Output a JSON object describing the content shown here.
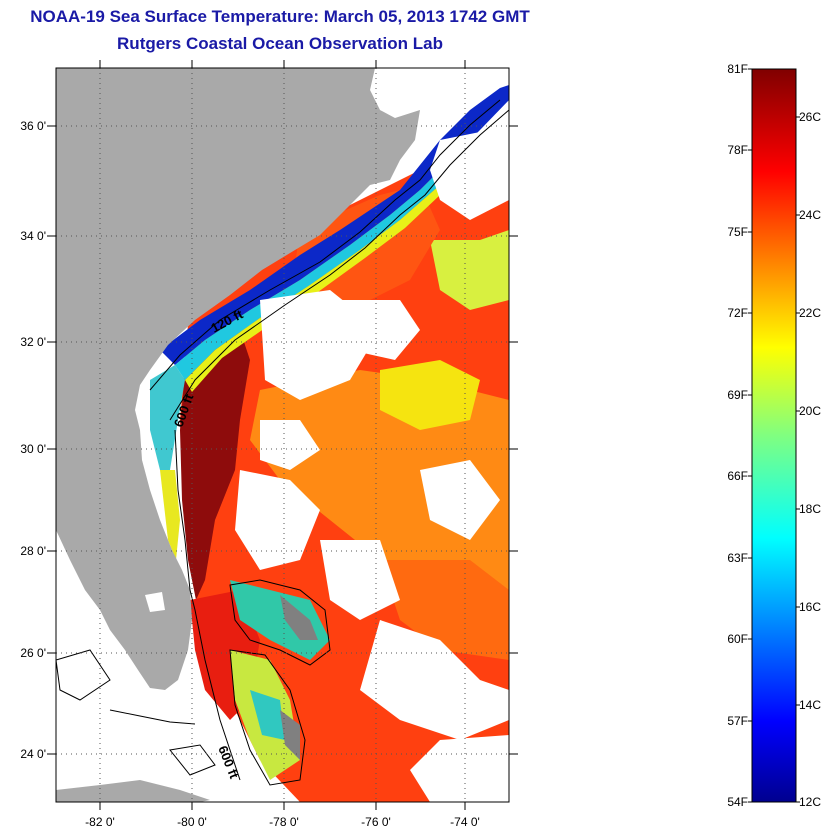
{
  "header": {
    "title": "NOAA-19 Sea Surface Temperature:  March 05, 2013 1742 GMT",
    "subtitle": "Rutgers Coastal Ocean Observation Lab"
  },
  "map": {
    "lat_labels": [
      "36 0'",
      "34 0'",
      "32 0'",
      "30 0'",
      "28 0'",
      "26 0'",
      "24 0'"
    ],
    "lon_labels": [
      "-82 0'",
      "-80 0'",
      "-78 0'",
      "-76 0'",
      "-74 0'"
    ],
    "contour_labels": [
      "120 ft",
      "600 ft",
      "600 ft"
    ],
    "colors": {
      "land": "#a9a9a9",
      "cloud": "#ffffff",
      "warm": "#e8140a",
      "hot": "#8b0a0a",
      "orange": "#ff8a10",
      "yellow": "#f0f010",
      "cyan": "#18d8e8",
      "blue": "#0a20c8"
    }
  },
  "colorbar": {
    "fahrenheit": [
      "81F",
      "78F",
      "75F",
      "72F",
      "69F",
      "66F",
      "63F",
      "60F",
      "57F",
      "54F"
    ],
    "celsius": [
      "26C",
      "24C",
      "22C",
      "20C",
      "18C",
      "16C",
      "14C",
      "12C"
    ]
  }
}
